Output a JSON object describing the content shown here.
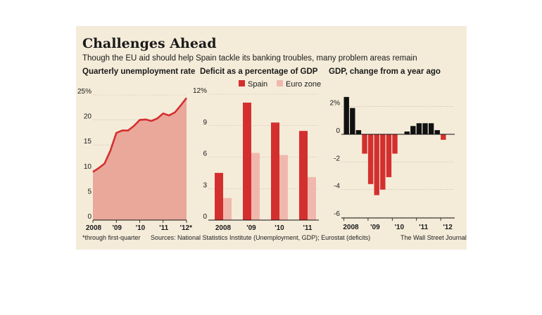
{
  "header": {
    "title": "Challenges Ahead",
    "subtitle": "Though the EU aid should help Spain tackle its banking troubles, many problem areas remain"
  },
  "footer": {
    "footnote": "*through first-quarter",
    "sources": "Sources: National Statistics Institute (Unemployment, GDP); Eurostat (deficits)",
    "credit": "The Wall Street Journal"
  },
  "colors": {
    "red": "#d42f2f",
    "pink": "#f0b8ad",
    "area_fill": "#eaa89b",
    "black": "#111111"
  },
  "chart_data": [
    {
      "type": "area",
      "title": "Quarterly unemployment rate",
      "x": [
        2008.0,
        2008.25,
        2008.5,
        2008.75,
        2009.0,
        2009.25,
        2009.5,
        2009.75,
        2010.0,
        2010.25,
        2010.5,
        2010.75,
        2011.0,
        2011.25,
        2011.5,
        2011.75,
        2012.0
      ],
      "values": [
        9.6,
        10.4,
        11.3,
        13.9,
        17.4,
        17.9,
        17.9,
        18.8,
        20.0,
        20.1,
        19.8,
        20.3,
        21.3,
        20.9,
        21.5,
        22.9,
        24.4
      ],
      "ylim": [
        0,
        25
      ],
      "yticks": [
        0,
        5,
        10,
        15,
        20,
        25
      ],
      "ytick_labels": [
        "0",
        "5",
        "10",
        "15",
        "20",
        "25%"
      ],
      "xtick_labels": [
        "2008",
        "'09",
        "'10",
        "'11",
        "'12*"
      ]
    },
    {
      "type": "bar",
      "title": "Deficit as a percentage of GDP",
      "categories": [
        "2008",
        "'09",
        "'10",
        "'11"
      ],
      "series": [
        {
          "name": "Spain",
          "values": [
            4.5,
            11.2,
            9.3,
            8.5
          ]
        },
        {
          "name": "Euro zone",
          "values": [
            2.1,
            6.4,
            6.2,
            4.1
          ]
        }
      ],
      "ylim": [
        0,
        12
      ],
      "yticks": [
        0,
        3,
        6,
        9,
        12
      ],
      "ytick_labels": [
        "0",
        "3",
        "6",
        "9",
        "12%"
      ],
      "legend": "top-right"
    },
    {
      "type": "bar",
      "title": "GDP, change from a year ago",
      "x": [
        2008.0,
        2008.25,
        2008.5,
        2008.75,
        2009.0,
        2009.25,
        2009.5,
        2009.75,
        2010.0,
        2010.25,
        2010.5,
        2010.75,
        2011.0,
        2011.25,
        2011.5,
        2011.75,
        2012.0
      ],
      "values": [
        2.7,
        1.9,
        0.3,
        -1.4,
        -3.6,
        -4.4,
        -4.0,
        -3.1,
        -1.4,
        0.0,
        0.2,
        0.6,
        0.8,
        0.8,
        0.8,
        0.3,
        -0.4
      ],
      "ylim": [
        -6,
        3
      ],
      "yticks": [
        -6,
        -4,
        -2,
        0,
        2
      ],
      "ytick_labels": [
        "-6",
        "-4",
        "-2",
        "0",
        "2%"
      ],
      "xtick_labels": [
        "2008",
        "'09",
        "'10",
        "'11",
        "'12"
      ]
    }
  ]
}
